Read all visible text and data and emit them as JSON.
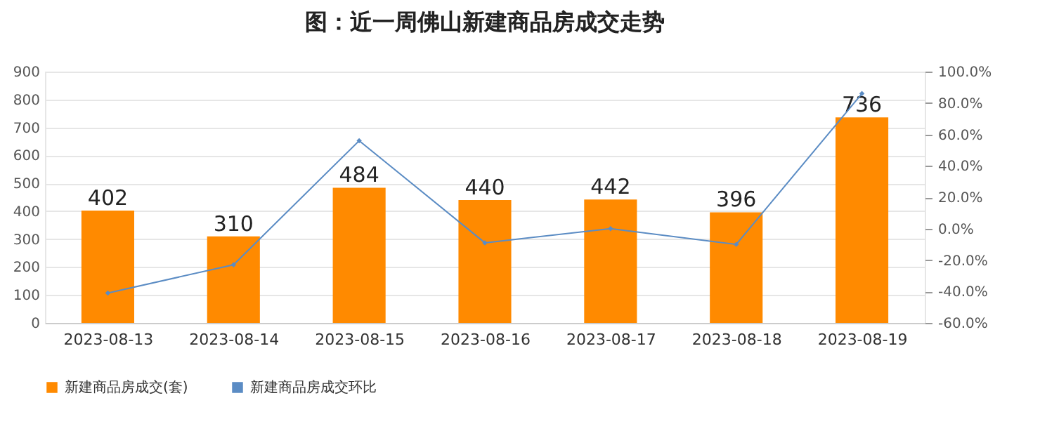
{
  "chart_data": {
    "type": "bar",
    "title": "图：近一周佛山新建商品房成交走势",
    "categories": [
      "2023-08-13",
      "2023-08-14",
      "2023-08-15",
      "2023-08-16",
      "2023-08-17",
      "2023-08-18",
      "2023-08-19"
    ],
    "series": [
      {
        "name": "新建商品房成交(套)",
        "color": "#ff8a00",
        "values": [
          402,
          310,
          484,
          440,
          442,
          396,
          736
        ],
        "value_labels": [
          "402",
          "310",
          "484",
          "440",
          "442",
          "396",
          "736"
        ]
      },
      {
        "name": "新建商品房成交环比",
        "type": "line",
        "axis": "y2",
        "color": "#5b8cc4",
        "marker": "diamond",
        "values": [
          -41,
          -23,
          56,
          -9,
          0,
          -10,
          86
        ]
      }
    ],
    "ylim": [
      0,
      900
    ],
    "yticks": [
      0,
      100,
      200,
      300,
      400,
      500,
      600,
      700,
      800,
      900
    ],
    "y2lim": [
      -60,
      100
    ],
    "y2ticks": [
      {
        "value": -60,
        "label": "-60.0%"
      },
      {
        "value": -40,
        "label": "-40.0%"
      },
      {
        "value": -20,
        "label": "-20.0%"
      },
      {
        "value": 0,
        "label": "0.0%"
      },
      {
        "value": 20,
        "label": "20.0%"
      },
      {
        "value": 40,
        "label": "40.0%"
      },
      {
        "value": 60,
        "label": "60.0%"
      },
      {
        "value": 80,
        "label": "80.0%"
      },
      {
        "value": 100,
        "label": "100.0%"
      }
    ],
    "grid": "y",
    "legend": "bottom"
  }
}
